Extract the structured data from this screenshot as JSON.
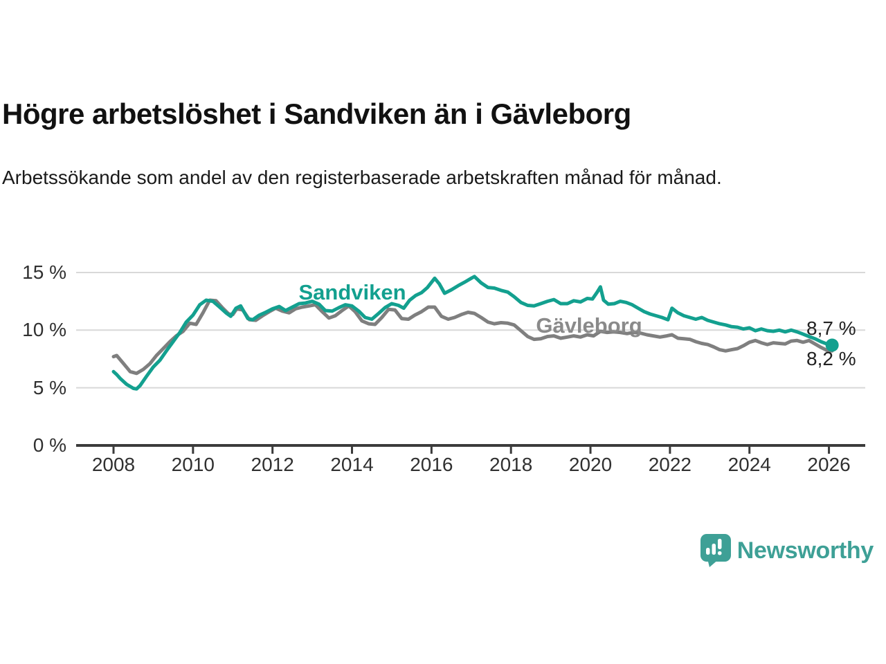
{
  "header": {
    "title": "Högre arbetslöshet i Sandviken än i Gävleborg",
    "subtitle": "Arbetssökande som andel av den registerbaserade arbetskraften månad för månad."
  },
  "chart_data": {
    "type": "line",
    "title": "Högre arbetslöshet i Sandviken än i Gävleborg",
    "subtitle": "Arbetssökande som andel av den registerbaserade arbetskraften månad för månad.",
    "unit": "%",
    "grid": "horizontal",
    "legend_position": "inline-labels",
    "xlim": [
      2007.05,
      2026.9
    ],
    "ylim": [
      0,
      16
    ],
    "x_ticks": [
      {
        "v": 2008,
        "label": "2008"
      },
      {
        "v": 2010,
        "label": "2010"
      },
      {
        "v": 2012,
        "label": "2012"
      },
      {
        "v": 2014,
        "label": "2014"
      },
      {
        "v": 2016,
        "label": "2016"
      },
      {
        "v": 2018,
        "label": "2018"
      },
      {
        "v": 2020,
        "label": "2020"
      },
      {
        "v": 2022,
        "label": "2022"
      },
      {
        "v": 2024,
        "label": "2024"
      },
      {
        "v": 2026,
        "label": "2026"
      }
    ],
    "y_ticks": [
      {
        "v": 0,
        "label": "0 %"
      },
      {
        "v": 5,
        "label": "5 %"
      },
      {
        "v": 10,
        "label": "10 %"
      },
      {
        "v": 15,
        "label": "15 %"
      }
    ],
    "series": [
      {
        "name": "Sandviken",
        "color": "#13A08F",
        "end_label": "8,7 %",
        "end_value": 8.7,
        "end_dot": true,
        "points": [
          [
            2008.0,
            6.4
          ],
          [
            2008.08,
            6.15
          ],
          [
            2008.17,
            5.8
          ],
          [
            2008.33,
            5.3
          ],
          [
            2008.5,
            4.95
          ],
          [
            2008.58,
            4.9
          ],
          [
            2008.67,
            5.2
          ],
          [
            2008.83,
            6.0
          ],
          [
            2009.0,
            6.8
          ],
          [
            2009.17,
            7.4
          ],
          [
            2009.33,
            8.2
          ],
          [
            2009.5,
            9.0
          ],
          [
            2009.67,
            9.8
          ],
          [
            2009.83,
            10.7
          ],
          [
            2010.0,
            11.3
          ],
          [
            2010.17,
            12.2
          ],
          [
            2010.33,
            12.6
          ],
          [
            2010.5,
            12.5
          ],
          [
            2010.67,
            12.0
          ],
          [
            2010.83,
            11.5
          ],
          [
            2010.95,
            11.2
          ],
          [
            2011.08,
            11.9
          ],
          [
            2011.2,
            12.1
          ],
          [
            2011.38,
            11.0
          ],
          [
            2011.5,
            10.9
          ],
          [
            2011.67,
            11.3
          ],
          [
            2011.83,
            11.55
          ],
          [
            2012.0,
            11.85
          ],
          [
            2012.17,
            12.05
          ],
          [
            2012.33,
            11.7
          ],
          [
            2012.5,
            12.0
          ],
          [
            2012.67,
            12.3
          ],
          [
            2012.83,
            12.35
          ],
          [
            2013.0,
            12.5
          ],
          [
            2013.17,
            12.25
          ],
          [
            2013.33,
            11.7
          ],
          [
            2013.5,
            11.65
          ],
          [
            2013.67,
            11.95
          ],
          [
            2013.83,
            12.2
          ],
          [
            2014.0,
            12.1
          ],
          [
            2014.17,
            11.65
          ],
          [
            2014.33,
            11.1
          ],
          [
            2014.5,
            10.95
          ],
          [
            2014.67,
            11.45
          ],
          [
            2014.83,
            11.95
          ],
          [
            2015.0,
            12.3
          ],
          [
            2015.17,
            12.15
          ],
          [
            2015.3,
            11.9
          ],
          [
            2015.45,
            12.6
          ],
          [
            2015.6,
            13.0
          ],
          [
            2015.75,
            13.25
          ],
          [
            2015.9,
            13.7
          ],
          [
            2016.08,
            14.5
          ],
          [
            2016.2,
            14.0
          ],
          [
            2016.33,
            13.2
          ],
          [
            2016.5,
            13.5
          ],
          [
            2016.67,
            13.85
          ],
          [
            2016.83,
            14.15
          ],
          [
            2017.0,
            14.5
          ],
          [
            2017.08,
            14.65
          ],
          [
            2017.25,
            14.1
          ],
          [
            2017.42,
            13.7
          ],
          [
            2017.58,
            13.65
          ],
          [
            2017.75,
            13.45
          ],
          [
            2017.92,
            13.3
          ],
          [
            2018.08,
            12.9
          ],
          [
            2018.25,
            12.4
          ],
          [
            2018.42,
            12.15
          ],
          [
            2018.58,
            12.1
          ],
          [
            2018.75,
            12.3
          ],
          [
            2018.92,
            12.5
          ],
          [
            2019.08,
            12.65
          ],
          [
            2019.25,
            12.3
          ],
          [
            2019.42,
            12.3
          ],
          [
            2019.58,
            12.55
          ],
          [
            2019.75,
            12.45
          ],
          [
            2019.92,
            12.75
          ],
          [
            2020.05,
            12.7
          ],
          [
            2020.17,
            13.3
          ],
          [
            2020.25,
            13.75
          ],
          [
            2020.33,
            12.6
          ],
          [
            2020.45,
            12.25
          ],
          [
            2020.6,
            12.3
          ],
          [
            2020.75,
            12.5
          ],
          [
            2020.9,
            12.4
          ],
          [
            2021.05,
            12.2
          ],
          [
            2021.2,
            11.9
          ],
          [
            2021.35,
            11.6
          ],
          [
            2021.5,
            11.4
          ],
          [
            2021.65,
            11.25
          ],
          [
            2021.8,
            11.1
          ],
          [
            2021.95,
            10.9
          ],
          [
            2022.05,
            11.9
          ],
          [
            2022.2,
            11.5
          ],
          [
            2022.35,
            11.25
          ],
          [
            2022.5,
            11.1
          ],
          [
            2022.65,
            10.95
          ],
          [
            2022.8,
            11.1
          ],
          [
            2022.95,
            10.85
          ],
          [
            2023.1,
            10.7
          ],
          [
            2023.25,
            10.55
          ],
          [
            2023.4,
            10.45
          ],
          [
            2023.55,
            10.3
          ],
          [
            2023.7,
            10.25
          ],
          [
            2023.85,
            10.1
          ],
          [
            2024.0,
            10.2
          ],
          [
            2024.15,
            9.95
          ],
          [
            2024.3,
            10.1
          ],
          [
            2024.45,
            9.95
          ],
          [
            2024.6,
            9.9
          ],
          [
            2024.75,
            10.0
          ],
          [
            2024.9,
            9.85
          ],
          [
            2025.05,
            10.0
          ],
          [
            2025.2,
            9.85
          ],
          [
            2025.35,
            9.65
          ],
          [
            2025.5,
            9.45
          ],
          [
            2025.65,
            9.25
          ],
          [
            2025.8,
            9.0
          ],
          [
            2025.95,
            8.8
          ],
          [
            2026.08,
            8.7
          ]
        ]
      },
      {
        "name": "Gävleborg",
        "color": "#7F7F7F",
        "end_label": "8,2 %",
        "end_value": 8.2,
        "end_dot": false,
        "points": [
          [
            2008.0,
            7.7
          ],
          [
            2008.08,
            7.8
          ],
          [
            2008.25,
            7.1
          ],
          [
            2008.42,
            6.4
          ],
          [
            2008.58,
            6.25
          ],
          [
            2008.75,
            6.6
          ],
          [
            2008.92,
            7.1
          ],
          [
            2009.08,
            7.8
          ],
          [
            2009.25,
            8.4
          ],
          [
            2009.42,
            9.0
          ],
          [
            2009.58,
            9.5
          ],
          [
            2009.75,
            9.9
          ],
          [
            2009.92,
            10.6
          ],
          [
            2010.08,
            10.5
          ],
          [
            2010.25,
            11.5
          ],
          [
            2010.42,
            12.6
          ],
          [
            2010.58,
            12.55
          ],
          [
            2010.75,
            11.9
          ],
          [
            2010.9,
            11.4
          ],
          [
            2011.0,
            11.35
          ],
          [
            2011.1,
            11.85
          ],
          [
            2011.25,
            11.75
          ],
          [
            2011.42,
            10.9
          ],
          [
            2011.58,
            10.85
          ],
          [
            2011.75,
            11.25
          ],
          [
            2011.92,
            11.6
          ],
          [
            2012.08,
            11.9
          ],
          [
            2012.25,
            11.65
          ],
          [
            2012.42,
            11.5
          ],
          [
            2012.58,
            11.85
          ],
          [
            2012.75,
            12.0
          ],
          [
            2012.92,
            12.1
          ],
          [
            2013.08,
            12.2
          ],
          [
            2013.25,
            11.6
          ],
          [
            2013.42,
            11.05
          ],
          [
            2013.58,
            11.25
          ],
          [
            2013.75,
            11.7
          ],
          [
            2013.92,
            12.1
          ],
          [
            2014.08,
            11.6
          ],
          [
            2014.25,
            10.8
          ],
          [
            2014.42,
            10.55
          ],
          [
            2014.58,
            10.5
          ],
          [
            2014.75,
            11.1
          ],
          [
            2014.92,
            11.8
          ],
          [
            2015.08,
            11.75
          ],
          [
            2015.25,
            11.0
          ],
          [
            2015.42,
            10.95
          ],
          [
            2015.58,
            11.3
          ],
          [
            2015.75,
            11.6
          ],
          [
            2015.92,
            12.0
          ],
          [
            2016.08,
            12.0
          ],
          [
            2016.25,
            11.2
          ],
          [
            2016.42,
            10.95
          ],
          [
            2016.58,
            11.1
          ],
          [
            2016.75,
            11.35
          ],
          [
            2016.92,
            11.55
          ],
          [
            2017.08,
            11.45
          ],
          [
            2017.25,
            11.1
          ],
          [
            2017.42,
            10.7
          ],
          [
            2017.58,
            10.55
          ],
          [
            2017.75,
            10.65
          ],
          [
            2017.92,
            10.6
          ],
          [
            2018.08,
            10.45
          ],
          [
            2018.25,
            9.95
          ],
          [
            2018.42,
            9.45
          ],
          [
            2018.58,
            9.2
          ],
          [
            2018.75,
            9.25
          ],
          [
            2018.92,
            9.45
          ],
          [
            2019.08,
            9.5
          ],
          [
            2019.25,
            9.3
          ],
          [
            2019.42,
            9.4
          ],
          [
            2019.58,
            9.5
          ],
          [
            2019.75,
            9.4
          ],
          [
            2019.92,
            9.6
          ],
          [
            2020.08,
            9.5
          ],
          [
            2020.25,
            9.9
          ],
          [
            2020.42,
            9.8
          ],
          [
            2020.58,
            9.85
          ],
          [
            2020.75,
            9.8
          ],
          [
            2020.92,
            9.7
          ],
          [
            2021.08,
            9.8
          ],
          [
            2021.25,
            9.75
          ],
          [
            2021.42,
            9.6
          ],
          [
            2021.58,
            9.5
          ],
          [
            2021.75,
            9.4
          ],
          [
            2021.92,
            9.5
          ],
          [
            2022.05,
            9.6
          ],
          [
            2022.2,
            9.3
          ],
          [
            2022.35,
            9.25
          ],
          [
            2022.5,
            9.2
          ],
          [
            2022.65,
            9.0
          ],
          [
            2022.8,
            8.85
          ],
          [
            2022.95,
            8.75
          ],
          [
            2023.1,
            8.55
          ],
          [
            2023.25,
            8.3
          ],
          [
            2023.4,
            8.2
          ],
          [
            2023.55,
            8.3
          ],
          [
            2023.7,
            8.4
          ],
          [
            2023.85,
            8.65
          ],
          [
            2024.0,
            8.95
          ],
          [
            2024.15,
            9.1
          ],
          [
            2024.3,
            8.9
          ],
          [
            2024.45,
            8.75
          ],
          [
            2024.6,
            8.9
          ],
          [
            2024.75,
            8.85
          ],
          [
            2024.9,
            8.8
          ],
          [
            2025.05,
            9.05
          ],
          [
            2025.2,
            9.1
          ],
          [
            2025.35,
            8.95
          ],
          [
            2025.5,
            9.1
          ],
          [
            2025.65,
            8.8
          ],
          [
            2025.8,
            8.5
          ],
          [
            2025.95,
            8.25
          ],
          [
            2026.08,
            8.2
          ]
        ]
      }
    ]
  },
  "branding": {
    "name": "Newsworthy",
    "logo_icon": "newsworthy-chart-bubble-icon",
    "color": "#3EA096"
  },
  "colors": {
    "sandviken": "#13A08F",
    "gavleborg": "#7F7F7F",
    "gridline": "#d8d8d8",
    "axis": "#3b3b3b",
    "text": "#1a1a1a"
  }
}
